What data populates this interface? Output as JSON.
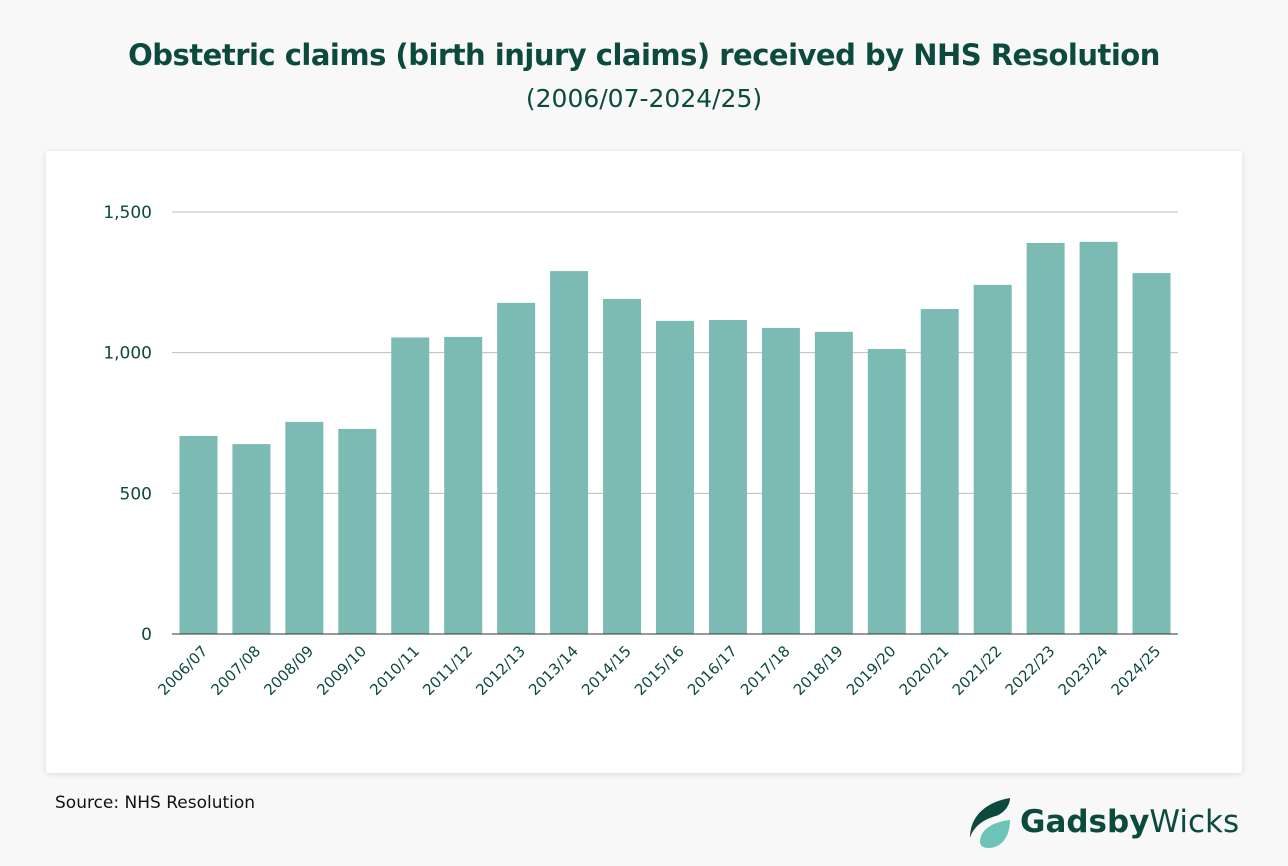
{
  "chart_data": {
    "type": "bar",
    "title": "Obstetric claims (birth injury claims) received by NHS Resolution",
    "subtitle": "(2006/07-2024/25)",
    "categories": [
      "2006/07",
      "2007/08",
      "2008/09",
      "2009/10",
      "2010/11",
      "2011/12",
      "2012/13",
      "2013/14",
      "2014/15",
      "2015/16",
      "2016/17",
      "2017/18",
      "2018/19",
      "2019/20",
      "2020/21",
      "2021/22",
      "2022/23",
      "2023/24",
      "2024/25"
    ],
    "values": [
      704,
      675,
      754,
      729,
      1054,
      1056,
      1177,
      1290,
      1191,
      1113,
      1116,
      1088,
      1074,
      1013,
      1155,
      1241,
      1390,
      1394,
      1283
    ],
    "ylim": [
      0,
      1500
    ],
    "yticks": [
      0,
      500,
      1000,
      1500
    ],
    "ytick_labels": [
      "0",
      "500",
      "1,000",
      "1,500"
    ],
    "grid": true,
    "xlabel": "",
    "ylabel": "",
    "colors": {
      "bar": "#7bbbb4",
      "text": "#0c4a3e",
      "grid": "#bdbdbd"
    }
  },
  "source": "Source: NHS Resolution",
  "logo": {
    "text_bold": "Gadsby",
    "text_regular": "Wicks",
    "colors": {
      "dark": "#0c4a3e",
      "light": "#6cc3b8"
    }
  }
}
